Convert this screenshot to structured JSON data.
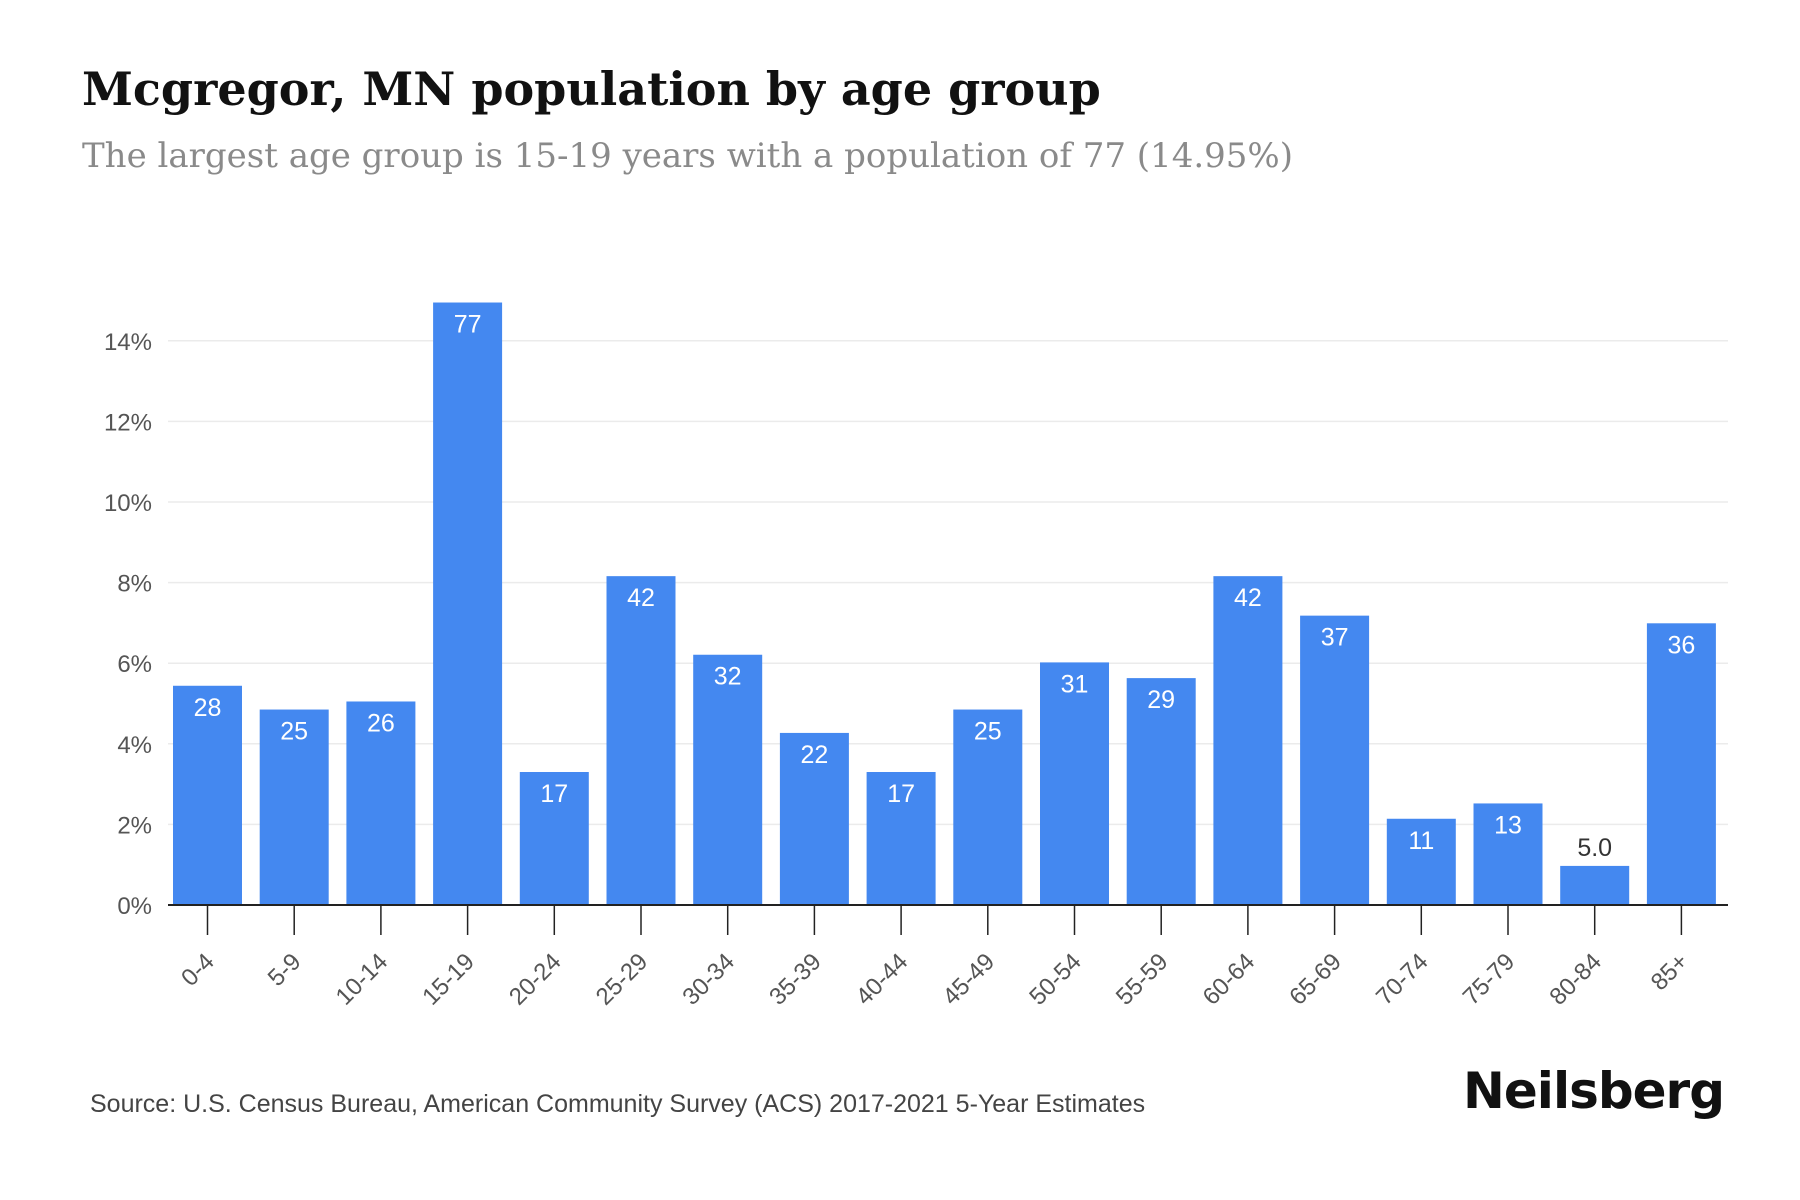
{
  "header": {
    "title": "Mcgregor, MN population by age group",
    "subtitle": "The largest age group is 15-19 years with a population of 77 (14.95%)"
  },
  "footer": {
    "source": "Source: U.S. Census Bureau, American Community Survey (ACS) 2017-2021 5-Year Estimates",
    "brand": "Neilsberg"
  },
  "colors": {
    "bar": "#4488f0",
    "bar_label": "#ffffff",
    "grid": "#ebebeb",
    "axis": "#222222",
    "tick_text": "#555555"
  },
  "chart_data": {
    "type": "bar",
    "categories": [
      "0-4",
      "5-9",
      "10-14",
      "15-19",
      "20-24",
      "25-29",
      "30-34",
      "35-39",
      "40-44",
      "45-49",
      "50-54",
      "55-59",
      "60-64",
      "65-69",
      "70-74",
      "75-79",
      "80-84",
      "85+"
    ],
    "values": [
      5.44,
      4.85,
      5.05,
      14.95,
      3.3,
      8.16,
      6.21,
      4.27,
      3.3,
      4.85,
      6.02,
      5.63,
      8.16,
      7.18,
      2.14,
      2.52,
      0.97,
      6.99
    ],
    "data_labels": [
      "28",
      "25",
      "26",
      "77",
      "17",
      "42",
      "32",
      "22",
      "17",
      "25",
      "31",
      "29",
      "42",
      "37",
      "11",
      "13",
      "5.0",
      "36"
    ],
    "y_ticks": [
      "0%",
      "2%",
      "4%",
      "6%",
      "8%",
      "10%",
      "12%",
      "14%"
    ],
    "y_tick_values": [
      0,
      2,
      4,
      6,
      8,
      10,
      12,
      14
    ],
    "ylim": [
      0,
      15
    ],
    "grid": true
  }
}
